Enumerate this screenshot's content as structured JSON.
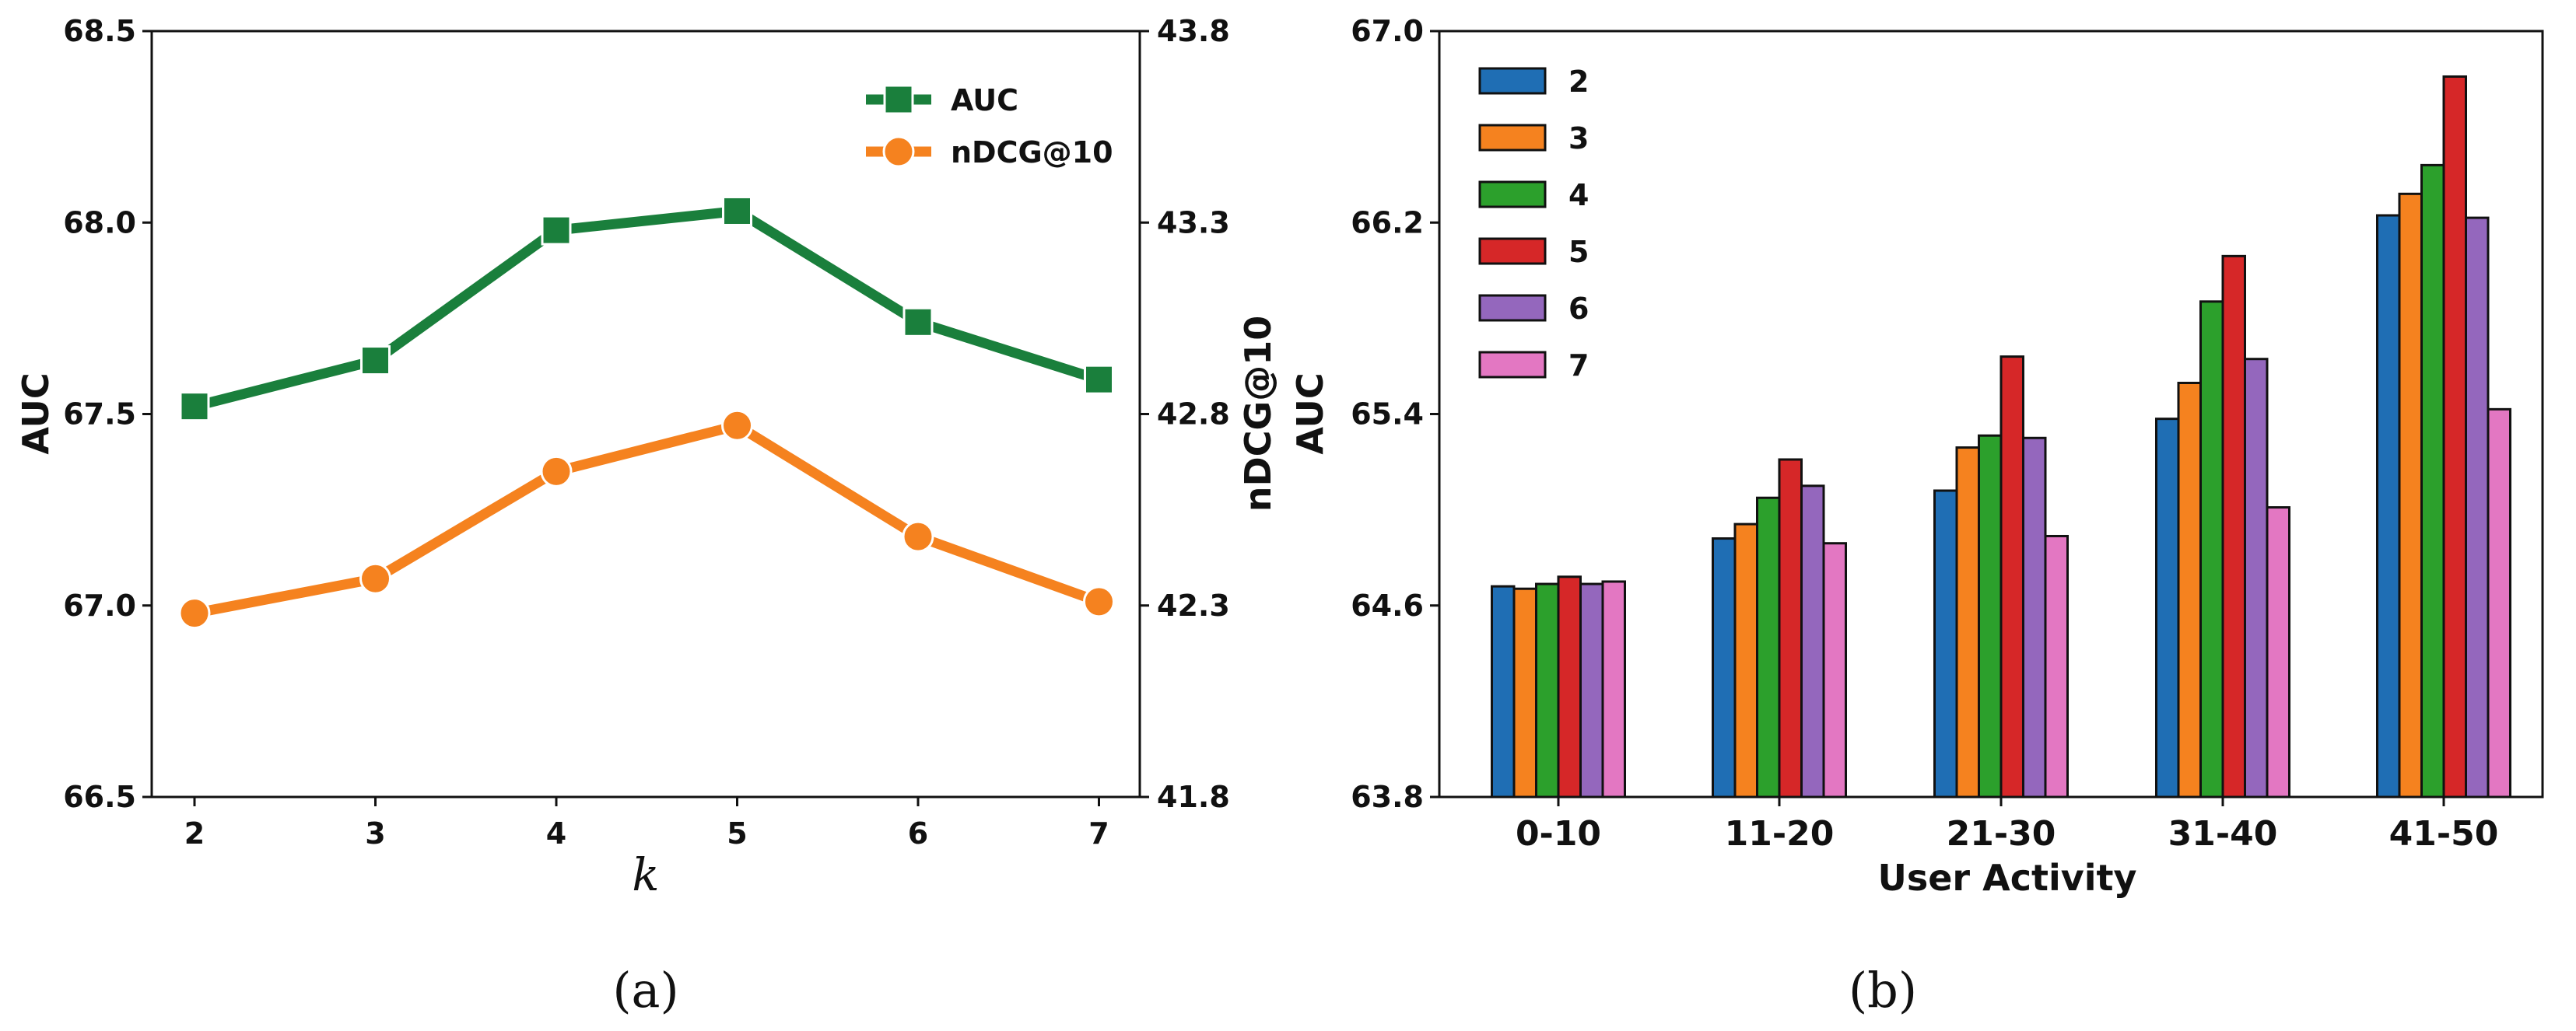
{
  "captions": {
    "a": "(a)",
    "b": "(b)"
  },
  "colors": {
    "auc": "#1a7f3c",
    "ndcg": "#f5821f",
    "k2": "#1f6eb4",
    "k3": "#f5821f",
    "k4": "#2ca02c",
    "k5": "#d62728",
    "k6": "#9467bd",
    "k7": "#e377c2"
  },
  "chart_data": [
    {
      "type": "line",
      "xlabel": "k",
      "ylabel": "AUC",
      "y2label": "nDCG@10",
      "x": [
        2,
        3,
        4,
        5,
        6,
        7
      ],
      "x_ticks": [
        "2",
        "3",
        "4",
        "5",
        "6",
        "7"
      ],
      "ylim": [
        66.5,
        68.5
      ],
      "y_ticks": [
        "66.5",
        "67.0",
        "67.5",
        "68.0",
        "68.5"
      ],
      "y2lim": [
        41.8,
        43.8
      ],
      "y2_ticks": [
        "41.8",
        "42.3",
        "42.8",
        "43.3",
        "43.8"
      ],
      "legend_position": "top-right",
      "series": [
        {
          "name": "AUC",
          "axis": "left",
          "marker": "square",
          "values": [
            67.52,
            67.64,
            67.98,
            68.03,
            67.74,
            67.59
          ]
        },
        {
          "name": "nDCG@10",
          "axis": "right",
          "marker": "circle",
          "values": [
            42.28,
            42.37,
            42.65,
            42.77,
            42.48,
            42.31
          ]
        }
      ],
      "grid": false
    },
    {
      "type": "bar",
      "xlabel": "User Activity",
      "ylabel": "AUC",
      "categories": [
        "0-10",
        "11-20",
        "21-30",
        "31-40",
        "41-50"
      ],
      "ylim": [
        63.8,
        67.0
      ],
      "y_ticks": [
        "63.8",
        "64.6",
        "65.4",
        "66.2",
        "67.0"
      ],
      "legend_position": "top-left",
      "series": [
        {
          "name": "2",
          "values": [
            64.68,
            64.88,
            65.08,
            65.38,
            66.23
          ]
        },
        {
          "name": "3",
          "values": [
            64.67,
            64.94,
            65.26,
            65.53,
            66.32
          ]
        },
        {
          "name": "4",
          "values": [
            64.69,
            65.05,
            65.31,
            65.87,
            66.44
          ]
        },
        {
          "name": "5",
          "values": [
            64.72,
            65.21,
            65.64,
            66.06,
            66.81
          ]
        },
        {
          "name": "6",
          "values": [
            64.69,
            65.1,
            65.3,
            65.63,
            66.22
          ]
        },
        {
          "name": "7",
          "values": [
            64.7,
            64.86,
            64.89,
            65.01,
            65.42
          ]
        }
      ],
      "grid": false
    }
  ]
}
